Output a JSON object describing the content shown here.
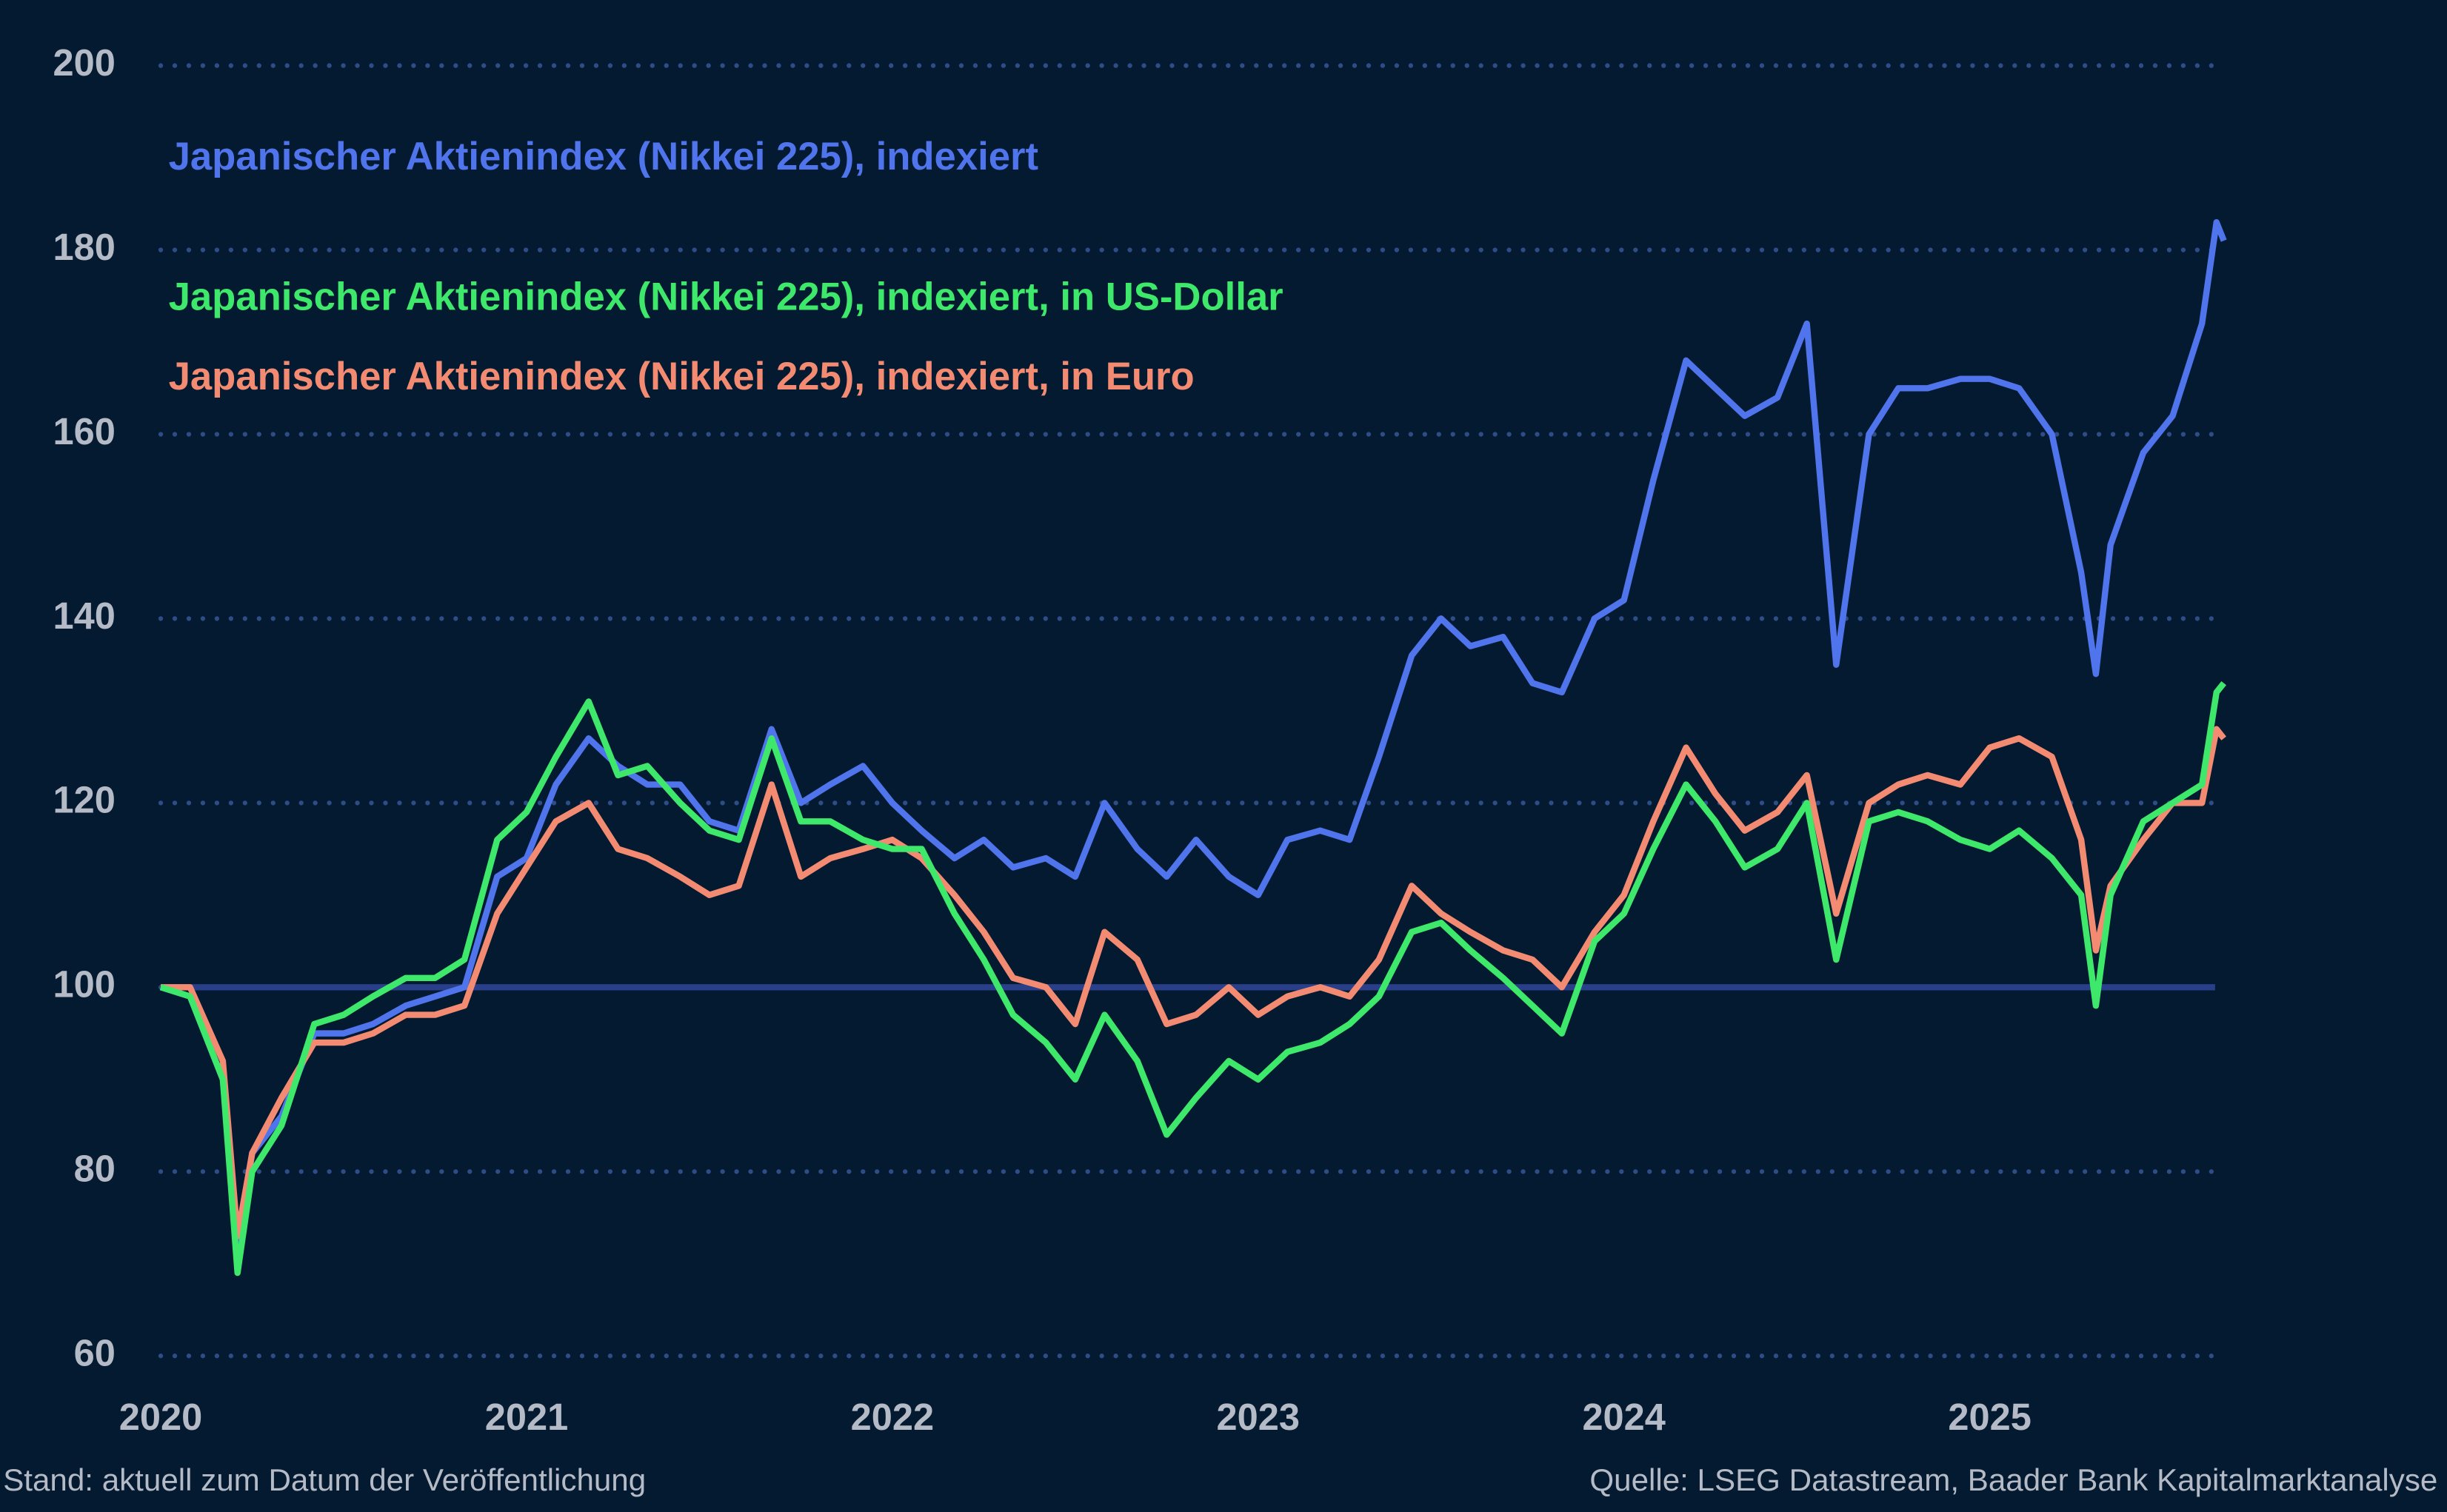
{
  "chart_data": {
    "type": "line",
    "annotations": [
      "Stand: aktuell zum Datum der Veröffentlichung",
      "Quelle: LSEG Datastream, Baader Bank Kapitalmarktanalyse"
    ],
    "x": [
      2020.0,
      2020.08,
      2020.17,
      2020.21,
      2020.25,
      2020.33,
      2020.42,
      2020.5,
      2020.58,
      2020.67,
      2020.75,
      2020.83,
      2020.92,
      2021.0,
      2021.08,
      2021.17,
      2021.25,
      2021.33,
      2021.42,
      2021.5,
      2021.58,
      2021.67,
      2021.75,
      2021.83,
      2021.92,
      2022.0,
      2022.08,
      2022.17,
      2022.25,
      2022.33,
      2022.42,
      2022.5,
      2022.58,
      2022.67,
      2022.75,
      2022.83,
      2022.92,
      2023.0,
      2023.08,
      2023.17,
      2023.25,
      2023.33,
      2023.42,
      2023.5,
      2023.58,
      2023.67,
      2023.75,
      2023.83,
      2023.92,
      2024.0,
      2024.08,
      2024.17,
      2024.25,
      2024.33,
      2024.42,
      2024.5,
      2024.58,
      2024.67,
      2024.75,
      2024.83,
      2024.92,
      2025.0,
      2025.08,
      2025.17,
      2025.25,
      2025.29,
      2025.33,
      2025.42,
      2025.5,
      2025.58,
      2025.62,
      2025.64
    ],
    "series": [
      {
        "name": "Japanischer Aktienindex (Nikkei 225), indexiert",
        "color": "#4f74ec",
        "values": [
          100,
          99,
          90,
          72,
          82,
          86,
          95,
          95,
          96,
          98,
          99,
          100,
          112,
          114,
          122,
          127,
          124,
          122,
          122,
          118,
          117,
          128,
          120,
          122,
          124,
          120,
          117,
          114,
          116,
          113,
          114,
          112,
          120,
          115,
          112,
          116,
          112,
          110,
          116,
          117,
          116,
          125,
          136,
          140,
          137,
          138,
          133,
          132,
          140,
          142,
          155,
          168,
          165,
          162,
          164,
          172,
          135,
          160,
          165,
          165,
          166,
          166,
          165,
          160,
          145,
          134,
          148,
          158,
          162,
          172,
          183,
          181
        ]
      },
      {
        "name": "Japanischer Aktienindex (Nikkei 225), indexiert, in US-Dollar",
        "color": "#3ee86b",
        "values": [
          100,
          99,
          90,
          69,
          80,
          85,
          96,
          97,
          99,
          101,
          101,
          103,
          116,
          119,
          125,
          131,
          123,
          124,
          120,
          117,
          116,
          127,
          118,
          118,
          116,
          115,
          115,
          108,
          103,
          97,
          94,
          90,
          97,
          92,
          84,
          88,
          92,
          90,
          93,
          94,
          96,
          99,
          106,
          107,
          104,
          101,
          98,
          95,
          105,
          108,
          115,
          122,
          118,
          113,
          115,
          120,
          103,
          118,
          119,
          118,
          116,
          115,
          117,
          114,
          110,
          98,
          110,
          118,
          120,
          122,
          132,
          133
        ]
      },
      {
        "name": "Japanischer Aktienindex (Nikkei 225), indexiert, in Euro",
        "color": "#f28b72",
        "values": [
          100,
          100,
          92,
          73,
          82,
          88,
          94,
          94,
          95,
          97,
          97,
          98,
          108,
          113,
          118,
          120,
          115,
          114,
          112,
          110,
          111,
          122,
          112,
          114,
          115,
          116,
          114,
          110,
          106,
          101,
          100,
          96,
          106,
          103,
          96,
          97,
          100,
          97,
          99,
          100,
          99,
          103,
          111,
          108,
          106,
          104,
          103,
          100,
          106,
          110,
          118,
          126,
          121,
          117,
          119,
          123,
          108,
          120,
          122,
          123,
          122,
          126,
          127,
          125,
          116,
          104,
          111,
          116,
          120,
          120,
          128,
          127
        ]
      }
    ],
    "xlim": [
      2020,
      2026
    ],
    "xticks": [
      2020,
      2021,
      2022,
      2023,
      2024,
      2025
    ],
    "ylim": [
      60,
      200
    ],
    "yticks": [
      60,
      80,
      100,
      120,
      140,
      160,
      180,
      200
    ],
    "reference_line": 100,
    "grid": true
  }
}
